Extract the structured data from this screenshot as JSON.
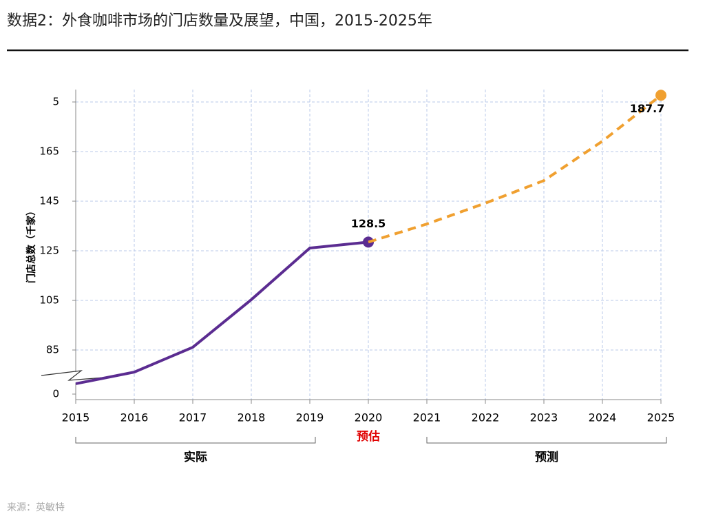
{
  "title": "数据2：外食咖啡市场的门店数量及展望，中国，2015-2025年",
  "source": "来源：英敏特",
  "chart_data": {
    "type": "line",
    "y_label": "门店总数（千家）",
    "categories": [
      "2015",
      "2016",
      "2017",
      "2018",
      "2019",
      "2020",
      "2021",
      "2022",
      "2023",
      "2024",
      "2025"
    ],
    "series": [
      {
        "color": "#5b2c91",
        "dashed": false,
        "values": [
          71.4,
          76.1,
          86.1,
          105.3,
          126.1,
          128.5,
          null,
          null,
          null,
          null,
          null
        ]
      },
      {
        "color": "#f0a030",
        "dashed": true,
        "values": [
          null,
          null,
          null,
          null,
          null,
          128.5,
          135.8,
          144.2,
          153.3,
          169.2,
          187.7
        ]
      }
    ],
    "ylim": [
      65,
      190
    ],
    "yticks": [
      0,
      85,
      105,
      125,
      145,
      165,
      {
        "value": 185,
        "label": "5"
      }
    ],
    "ybreak": true,
    "grid": true,
    "estimate_label": "预估",
    "groups": [
      "实际",
      "预测"
    ]
  }
}
